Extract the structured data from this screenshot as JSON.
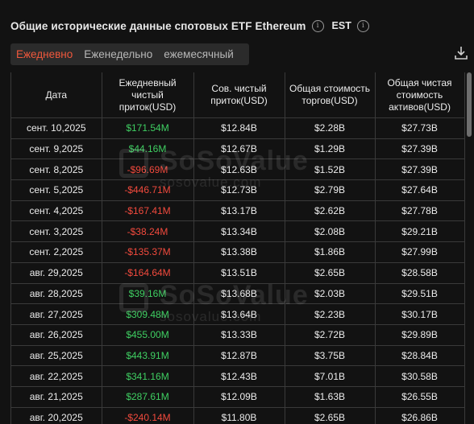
{
  "header": {
    "title": "Общие исторические данные спотовых ETF Ethereum",
    "info_icon": "i",
    "timezone": "EST",
    "tz_info_icon": "i"
  },
  "tabs": [
    {
      "label": "Ежедневно",
      "active": true
    },
    {
      "label": "Еженедельно",
      "active": false
    },
    {
      "label": "ежемесячный",
      "active": false
    }
  ],
  "table": {
    "headers": [
      "Дата",
      "Ежедневный чистый приток(USD)",
      "Сов. чистый приток(USD)",
      "Общая стоимость торгов(USD)",
      "Общая чистая стоимость активов(USD)"
    ],
    "rows": [
      {
        "date": "сент. 10,2025",
        "daily": "$171.54M",
        "sign": "pos",
        "cum": "$12.84B",
        "trade": "$2.28B",
        "assets": "$27.73B"
      },
      {
        "date": "сент. 9,2025",
        "daily": "$44.16M",
        "sign": "pos",
        "cum": "$12.67B",
        "trade": "$1.29B",
        "assets": "$27.39B"
      },
      {
        "date": "сент. 8,2025",
        "daily": "-$96.69M",
        "sign": "neg",
        "cum": "$12.63B",
        "trade": "$1.52B",
        "assets": "$27.39B"
      },
      {
        "date": "сент. 5,2025",
        "daily": "-$446.71M",
        "sign": "neg",
        "cum": "$12.73B",
        "trade": "$2.79B",
        "assets": "$27.64B"
      },
      {
        "date": "сент. 4,2025",
        "daily": "-$167.41M",
        "sign": "neg",
        "cum": "$13.17B",
        "trade": "$2.62B",
        "assets": "$27.78B"
      },
      {
        "date": "сент. 3,2025",
        "daily": "-$38.24M",
        "sign": "neg",
        "cum": "$13.34B",
        "trade": "$2.08B",
        "assets": "$29.21B"
      },
      {
        "date": "сент. 2,2025",
        "daily": "-$135.37M",
        "sign": "neg",
        "cum": "$13.38B",
        "trade": "$1.86B",
        "assets": "$27.99B"
      },
      {
        "date": "авг. 29,2025",
        "daily": "-$164.64M",
        "sign": "neg",
        "cum": "$13.51B",
        "trade": "$2.65B",
        "assets": "$28.58B"
      },
      {
        "date": "авг. 28,2025",
        "daily": "$39.16M",
        "sign": "pos",
        "cum": "$13.68B",
        "trade": "$2.03B",
        "assets": "$29.51B"
      },
      {
        "date": "авг. 27,2025",
        "daily": "$309.48M",
        "sign": "pos",
        "cum": "$13.64B",
        "trade": "$2.23B",
        "assets": "$30.17B"
      },
      {
        "date": "авг. 26,2025",
        "daily": "$455.00M",
        "sign": "pos",
        "cum": "$13.33B",
        "trade": "$2.72B",
        "assets": "$29.89B"
      },
      {
        "date": "авг. 25,2025",
        "daily": "$443.91M",
        "sign": "pos",
        "cum": "$12.87B",
        "trade": "$3.75B",
        "assets": "$28.84B"
      },
      {
        "date": "авг. 22,2025",
        "daily": "$341.16M",
        "sign": "pos",
        "cum": "$12.43B",
        "trade": "$7.01B",
        "assets": "$30.58B"
      },
      {
        "date": "авг. 21,2025",
        "daily": "$287.61M",
        "sign": "pos",
        "cum": "$12.09B",
        "trade": "$1.63B",
        "assets": "$26.55B"
      },
      {
        "date": "авг. 20,2025",
        "daily": "-$240.14M",
        "sign": "neg",
        "cum": "$11.80B",
        "trade": "$2.65B",
        "assets": "$26.86B"
      }
    ]
  },
  "watermark": {
    "brand": "SoSoValue",
    "url": "sosovalue.com"
  },
  "colors": {
    "positive": "#3fcf62",
    "negative": "#f24a3d",
    "active_tab": "#f0583c",
    "background": "#121212"
  }
}
